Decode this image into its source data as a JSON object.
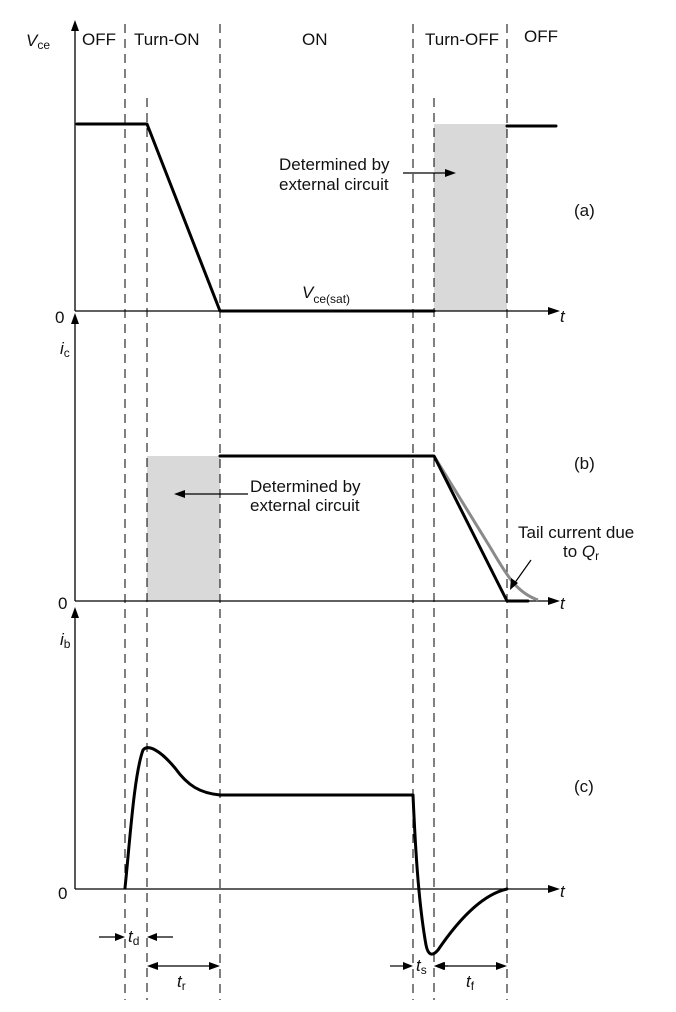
{
  "phases": [
    "OFF",
    "Turn-ON",
    "ON",
    "Turn-OFF",
    "OFF"
  ],
  "panels": {
    "a": {
      "ylabel": "V",
      "ylabel_sub": "ce",
      "zero": "0",
      "xlabel": "t",
      "tag": "(a)",
      "level_label": "V",
      "level_label_sub": "ce(sat)",
      "note_line1": "Determined by",
      "note_line2": "external circuit"
    },
    "b": {
      "ylabel": "i",
      "ylabel_sub": "c",
      "zero": "0",
      "xlabel": "t",
      "tag": "(b)",
      "note_line1": "Determined by",
      "note_line2": "external circuit",
      "tail_line1": "Tail current due",
      "tail_line2_prefix": "to ",
      "tail_line2_q": "Q",
      "tail_line2_sub": "r"
    },
    "c": {
      "ylabel": "i",
      "ylabel_sub": "b",
      "zero": "0",
      "xlabel": "t",
      "tag": "(c)"
    }
  },
  "intervals": {
    "td": {
      "main": "t",
      "sub": "d"
    },
    "tr": {
      "main": "t",
      "sub": "r"
    },
    "ts": {
      "main": "t",
      "sub": "s"
    },
    "tf": {
      "main": "t",
      "sub": "f"
    }
  },
  "colors": {
    "shade": "#d9d9d9",
    "tail": "#8a8a8a",
    "line": "#000000"
  }
}
